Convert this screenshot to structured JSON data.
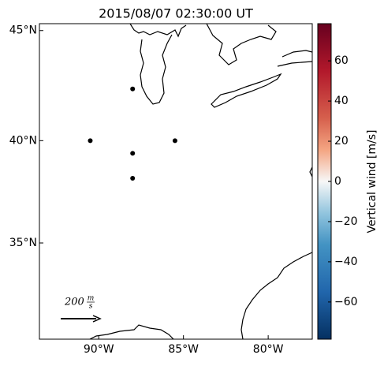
{
  "chart_data": {
    "type": "scatter",
    "title": "2015/08/07 02:30:00 UT",
    "projection": "mercator",
    "x": [
      -88.0,
      -90.5,
      -85.5,
      -88.0,
      -88.0
    ],
    "y": [
      42.4,
      40.0,
      40.0,
      39.4,
      38.2
    ],
    "color": "#000000",
    "xlim": [
      -93.5,
      -77.4
    ],
    "ylim": [
      30.0,
      45.3
    ],
    "xticks": [
      {
        "value": -90,
        "label": "90°W"
      },
      {
        "value": -85,
        "label": "85°W"
      },
      {
        "value": -80,
        "label": "80°W"
      }
    ],
    "yticks": [
      {
        "value": 45,
        "label": "45°N"
      },
      {
        "value": 40,
        "label": "40°N"
      },
      {
        "value": 35,
        "label": "35°N"
      }
    ],
    "colorbar": {
      "label": "Vertical wind [m/s]",
      "lim": [
        -78.5,
        78.5
      ],
      "ticks": [
        60,
        40,
        20,
        0,
        {
          "value": -20,
          "label": "−20"
        },
        {
          "value": -40,
          "label": "−40"
        },
        {
          "value": -60,
          "label": "−60"
        }
      ]
    },
    "scale_arrow": {
      "value": "200",
      "unit_num": "m",
      "unit_den": "s"
    }
  }
}
